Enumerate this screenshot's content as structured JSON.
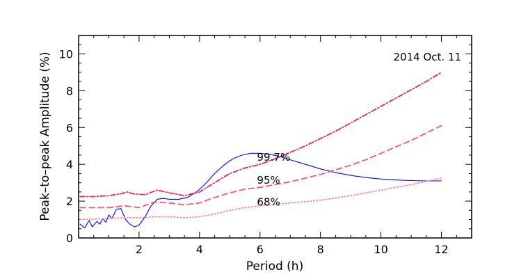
{
  "chart_data": {
    "type": "line",
    "title": "",
    "annotation": "2014 Oct. 11",
    "xlabel": "Period (h)",
    "ylabel": "Peak–to–peak Amplitude (%)",
    "xlim": [
      0,
      13
    ],
    "ylim": [
      0,
      11
    ],
    "x_ticks": [
      2,
      4,
      6,
      8,
      10,
      12
    ],
    "x_tick_labels": [
      "2",
      "4",
      "6",
      "8",
      "10",
      "12"
    ],
    "y_ticks": [
      0,
      2,
      4,
      6,
      8,
      10
    ],
    "y_tick_labels": [
      "0",
      "2",
      "4",
      "6",
      "8",
      "10"
    ],
    "series": [
      {
        "name": "amplitude",
        "style": "solid",
        "color": "#0000ff",
        "x": [
          0.05,
          0.2,
          0.35,
          0.45,
          0.6,
          0.7,
          0.8,
          0.9,
          1.0,
          1.1,
          1.25,
          1.4,
          1.55,
          1.7,
          1.85,
          2.0,
          2.2,
          2.4,
          2.6,
          2.8,
          3.0,
          3.3,
          3.6,
          3.9,
          4.2,
          4.5,
          4.8,
          5.1,
          5.4,
          5.7,
          6.0,
          6.3,
          6.6,
          7.0,
          7.5,
          8.0,
          8.5,
          9.0,
          9.5,
          10.0,
          10.5,
          11.0,
          11.5,
          12.0
        ],
        "y": [
          0.75,
          0.55,
          0.95,
          0.6,
          0.9,
          0.75,
          1.05,
          0.85,
          1.25,
          1.05,
          1.55,
          1.6,
          1.0,
          0.75,
          0.6,
          0.7,
          1.15,
          1.75,
          2.1,
          2.15,
          2.1,
          2.1,
          2.2,
          2.5,
          2.95,
          3.5,
          3.95,
          4.3,
          4.5,
          4.6,
          4.6,
          4.55,
          4.45,
          4.25,
          4.0,
          3.75,
          3.55,
          3.4,
          3.28,
          3.2,
          3.15,
          3.12,
          3.1,
          3.1
        ]
      },
      {
        "name": "99.7%",
        "style": "dashdot",
        "color": "#ee2255",
        "x": [
          0.05,
          0.5,
          1.0,
          1.4,
          1.6,
          1.8,
          2.2,
          2.6,
          3.0,
          3.5,
          4.0,
          4.5,
          5.0,
          5.5,
          6.0,
          6.5,
          7.0,
          7.5,
          8.0,
          8.5,
          9.0,
          9.5,
          10.0,
          10.5,
          11.0,
          11.5,
          12.0
        ],
        "y": [
          2.25,
          2.25,
          2.3,
          2.4,
          2.5,
          2.4,
          2.35,
          2.6,
          2.45,
          2.3,
          2.5,
          3.0,
          3.5,
          3.8,
          4.0,
          4.3,
          4.65,
          5.0,
          5.4,
          5.8,
          6.25,
          6.7,
          7.15,
          7.6,
          8.05,
          8.5,
          9.0
        ]
      },
      {
        "name": "95%",
        "style": "dashed",
        "color": "#ff5577",
        "x": [
          0.05,
          1.0,
          1.5,
          2.0,
          2.5,
          3.0,
          3.5,
          4.0,
          4.5,
          5.0,
          5.5,
          6.0,
          6.5,
          7.0,
          7.5,
          8.0,
          8.5,
          9.0,
          9.5,
          10.0,
          10.5,
          11.0,
          11.5,
          12.0
        ],
        "y": [
          1.65,
          1.65,
          1.75,
          1.65,
          1.95,
          1.9,
          1.8,
          1.9,
          2.2,
          2.45,
          2.65,
          2.75,
          2.9,
          3.05,
          3.25,
          3.45,
          3.7,
          3.95,
          4.25,
          4.6,
          4.95,
          5.3,
          5.7,
          6.1
        ]
      },
      {
        "name": "68%",
        "style": "dotted",
        "color": "#ff88aa",
        "x": [
          0.05,
          1.0,
          1.5,
          2.0,
          2.5,
          3.0,
          3.5,
          4.0,
          4.5,
          5.0,
          5.5,
          6.0,
          7.0,
          8.0,
          9.0,
          10.0,
          11.0,
          12.0
        ],
        "y": [
          1.0,
          1.05,
          1.1,
          1.1,
          1.15,
          1.15,
          1.1,
          1.15,
          1.3,
          1.5,
          1.65,
          1.75,
          1.9,
          2.05,
          2.3,
          2.6,
          2.9,
          3.25
        ]
      }
    ],
    "labels": [
      {
        "text": "99.7%",
        "x": 5.9,
        "y": 4.2
      },
      {
        "text": "95%",
        "x": 5.9,
        "y": 2.95
      },
      {
        "text": "68%",
        "x": 5.9,
        "y": 1.75
      }
    ]
  }
}
